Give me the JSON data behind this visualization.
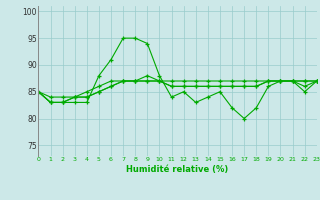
{
  "xlabel": "Humidité relative (%)",
  "background_color": "#cce8e8",
  "grid_color": "#99cccc",
  "line_color": "#00aa00",
  "ylim": [
    73,
    101
  ],
  "xlim": [
    0,
    23
  ],
  "yticks": [
    75,
    80,
    85,
    90,
    95,
    100
  ],
  "xticks": [
    0,
    1,
    2,
    3,
    4,
    5,
    6,
    7,
    8,
    9,
    10,
    11,
    12,
    13,
    14,
    15,
    16,
    17,
    18,
    19,
    20,
    21,
    22,
    23
  ],
  "series": [
    [
      85,
      83,
      83,
      83,
      83,
      88,
      91,
      95,
      95,
      94,
      88,
      84,
      85,
      83,
      84,
      85,
      82,
      80,
      82,
      86,
      87,
      87,
      85,
      87
    ],
    [
      85,
      83,
      83,
      84,
      84,
      85,
      86,
      87,
      87,
      88,
      87,
      87,
      87,
      87,
      87,
      87,
      87,
      87,
      87,
      87,
      87,
      87,
      87,
      87
    ],
    [
      85,
      83,
      83,
      84,
      85,
      86,
      87,
      87,
      87,
      87,
      87,
      86,
      86,
      86,
      86,
      86,
      86,
      86,
      86,
      87,
      87,
      87,
      87,
      87
    ],
    [
      85,
      84,
      84,
      84,
      84,
      85,
      86,
      87,
      87,
      87,
      87,
      86,
      86,
      86,
      86,
      86,
      86,
      86,
      86,
      87,
      87,
      87,
      86,
      87
    ]
  ]
}
